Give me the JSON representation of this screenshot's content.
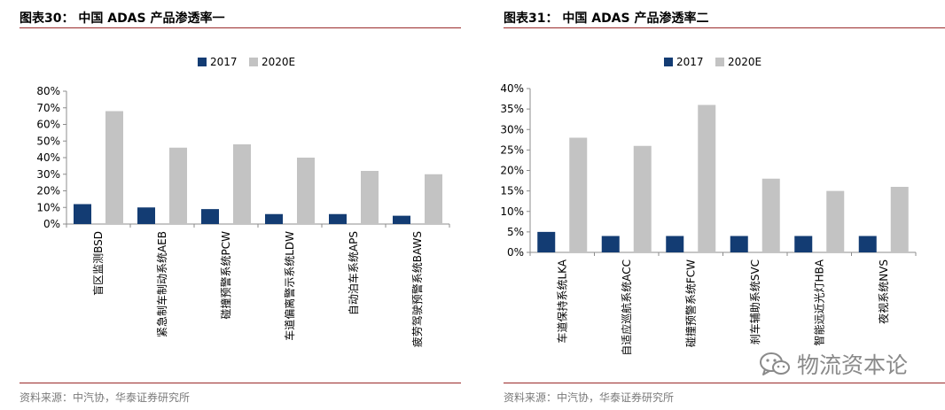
{
  "figures": [
    {
      "title": "图表30：  中国 ADAS 产品渗透率一",
      "source": "资料来源：中汽协，华泰证券研究所"
    },
    {
      "title": "图表31：  中国 ADAS 产品渗透率二",
      "source": "资料来源：中汽协，华泰证券研究所"
    }
  ],
  "watermark": {
    "text": "物流资本论",
    "icon": "wechat-icon"
  },
  "colors": {
    "series_2017": "#133c73",
    "series_2020e": "#c3c3c3",
    "accent_rule": "#9a2a2a",
    "axis": "#8c8c8c"
  },
  "chart_data": [
    {
      "type": "bar",
      "title": "",
      "xlabel": "",
      "ylabel": "",
      "categories": [
        "盲区监测BSD",
        "紧急制车制动系统AEB",
        "碰撞预警系统PCW",
        "车道偏离警示系统LDW",
        "自动泊车系统APS",
        "疲劳驾驶预警系统BAWS"
      ],
      "series": [
        {
          "name": "2017",
          "values": [
            12,
            10,
            9,
            6,
            6,
            5
          ]
        },
        {
          "name": "2020E",
          "values": [
            68,
            46,
            48,
            40,
            32,
            30
          ]
        }
      ],
      "ylim": [
        0,
        80
      ],
      "yticks": [
        "0%",
        "10%",
        "20%",
        "30%",
        "40%",
        "50%",
        "60%",
        "70%",
        "80%"
      ],
      "legend": "top-center",
      "grid": false
    },
    {
      "type": "bar",
      "title": "",
      "xlabel": "",
      "ylabel": "",
      "categories": [
        "车道保持系统LKA",
        "自适应巡航系统ACC",
        "碰撞预警系统FCW",
        "刹车辅助系统SVC",
        "智能远近光灯HBA",
        "夜视系统NVS"
      ],
      "series": [
        {
          "name": "2017",
          "values": [
            5,
            4,
            4,
            4,
            4,
            4
          ]
        },
        {
          "name": "2020E",
          "values": [
            28,
            26,
            36,
            18,
            15,
            16
          ]
        }
      ],
      "ylim": [
        0,
        40
      ],
      "yticks": [
        "0%",
        "5%",
        "10%",
        "15%",
        "20%",
        "25%",
        "30%",
        "35%",
        "40%"
      ],
      "legend": "top-center",
      "grid": false
    }
  ]
}
